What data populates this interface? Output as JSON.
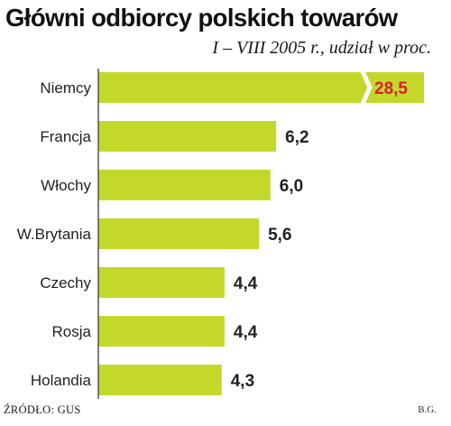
{
  "chart_data": {
    "type": "bar",
    "orientation": "horizontal",
    "title": "Główni odbiorcy polskich towarów",
    "subtitle": "I – VIII  2005 r., udział w proc.",
    "categories": [
      "Niemcy",
      "Francja",
      "Włochy",
      "W.Brytania",
      "Czechy",
      "Rosja",
      "Holandia"
    ],
    "values": [
      28.5,
      6.2,
      6.0,
      5.6,
      4.4,
      4.4,
      4.3
    ],
    "value_labels": [
      "28,5",
      "6,2",
      "6,0",
      "5,6",
      "4,4",
      "4,4",
      "4,3"
    ],
    "axis_break_on_first_bar": true,
    "grid": false,
    "legend": "none",
    "colors": {
      "bar": "#c4d82c",
      "highlight_label": "#d8202a",
      "label": "#222222",
      "axis": "#555555"
    }
  },
  "footer": {
    "source": "ŹRÓDŁO: GUS",
    "author": "B.G."
  }
}
